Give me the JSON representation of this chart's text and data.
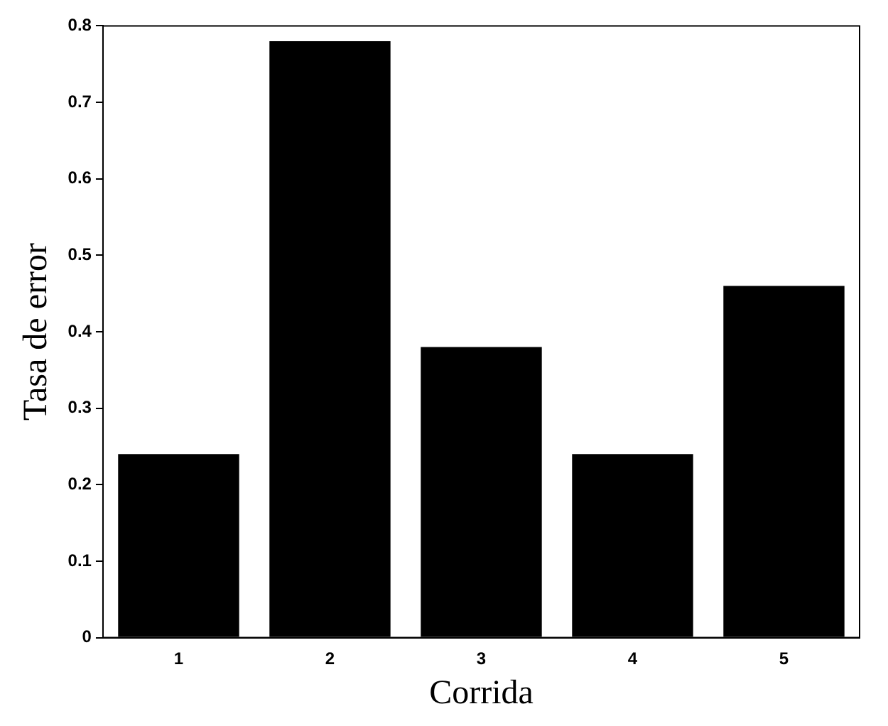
{
  "chart_data": {
    "type": "bar",
    "xlabel": "Corrida",
    "ylabel": "Tasa de error",
    "categories": [
      "1",
      "2",
      "3",
      "4",
      "5"
    ],
    "values": [
      0.24,
      0.78,
      0.38,
      0.24,
      0.46
    ],
    "color": "#000000",
    "ylim": [
      0,
      0.8
    ],
    "yticks": [
      0,
      0.1,
      0.2,
      0.3,
      0.4,
      0.5,
      0.6,
      0.7,
      0.8
    ],
    "grid": false,
    "legend": false
  }
}
